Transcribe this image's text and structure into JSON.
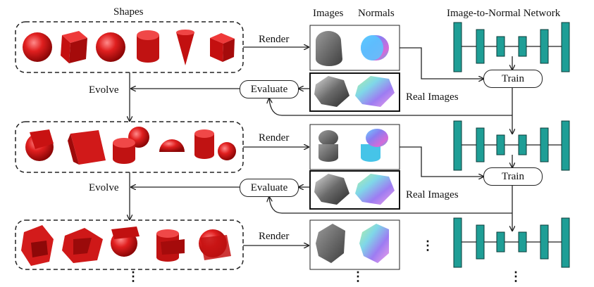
{
  "labels": {
    "shapes": "Shapes",
    "images": "Images",
    "normals": "Normals",
    "network": "Image-to-Normal Network"
  },
  "rows": [
    {
      "render": "Render",
      "train": "Train",
      "evaluate": "Evaluate",
      "evolve": "Evolve",
      "real_images": "Real Images"
    },
    {
      "render": "Render",
      "train": "Train",
      "evaluate": "Evaluate",
      "evolve": "Evolve",
      "real_images": "Real Images"
    },
    {
      "render": "Render"
    }
  ],
  "ellipsis": "⋮",
  "colors": {
    "shape_red": "#d81a1a",
    "network_teal": "#1f9e96",
    "render_gray": "#6b6b6b",
    "line": "#222222"
  }
}
